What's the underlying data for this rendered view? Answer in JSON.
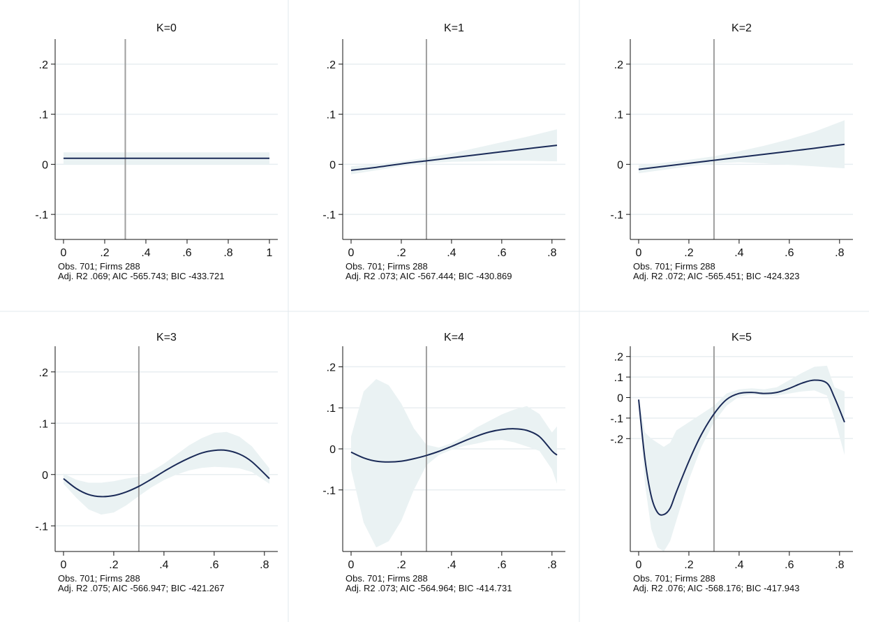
{
  "colors": {
    "line": "#1a2a57",
    "band": "#eaf2f3",
    "vline": "#9e9e9e",
    "grid": "#e8eef1",
    "axis": "#111111",
    "panel_border": "#e2e8ec"
  },
  "chart_data": [
    {
      "type": "line",
      "title": "K=0",
      "xlim": [
        0,
        1
      ],
      "ylim": [
        -0.15,
        0.25
      ],
      "xticks": [
        0,
        0.2,
        0.4,
        0.6,
        0.8,
        1
      ],
      "xticklabels": [
        "0",
        ".2",
        ".4",
        ".6",
        ".8",
        "1"
      ],
      "yticks": [
        0.2,
        0.1,
        0,
        -0.1
      ],
      "yticklabels": [
        ".2",
        ".1",
        "0",
        "-.1"
      ],
      "vline_x": 0.3,
      "x": [
        0,
        0.1,
        0.2,
        0.3,
        0.4,
        0.5,
        0.6,
        0.7,
        0.8,
        0.9,
        1
      ],
      "y": [
        0.012,
        0.012,
        0.012,
        0.012,
        0.012,
        0.012,
        0.012,
        0.012,
        0.012,
        0.012,
        0.012
      ],
      "lower": [
        0.0,
        0.0,
        0.0,
        0.0,
        0.0,
        0.0,
        0.0,
        0.0,
        0.0,
        0.0,
        0.0
      ],
      "upper": [
        0.024,
        0.024,
        0.024,
        0.024,
        0.024,
        0.024,
        0.024,
        0.024,
        0.024,
        0.024,
        0.024
      ],
      "note_line1": "Obs. 701; Firms 288",
      "note_line2": "Adj. R2 .069; AIC -565.743; BIC -433.721"
    },
    {
      "type": "line",
      "title": "K=1",
      "xlim": [
        0,
        0.82
      ],
      "ylim": [
        -0.15,
        0.25
      ],
      "xticks": [
        0,
        0.2,
        0.4,
        0.6,
        0.8
      ],
      "xticklabels": [
        "0",
        ".2",
        ".4",
        ".6",
        ".8"
      ],
      "yticks": [
        0.2,
        0.1,
        0,
        -0.1
      ],
      "yticklabels": [
        ".2",
        ".1",
        "0",
        "-.1"
      ],
      "vline_x": 0.3,
      "x": [
        0,
        0.1,
        0.2,
        0.3,
        0.4,
        0.5,
        0.6,
        0.7,
        0.82
      ],
      "y": [
        -0.012,
        -0.006,
        0.001,
        0.007,
        0.013,
        0.019,
        0.025,
        0.031,
        0.038
      ],
      "lower": [
        -0.02,
        -0.012,
        -0.004,
        0.002,
        0.005,
        0.006,
        0.007,
        0.007,
        0.006
      ],
      "upper": [
        -0.004,
        0.0,
        0.006,
        0.013,
        0.022,
        0.033,
        0.044,
        0.055,
        0.07
      ],
      "note_line1": "Obs. 701; Firms 288",
      "note_line2": "Adj. R2 .073; AIC -567.444; BIC -430.869"
    },
    {
      "type": "line",
      "title": "K=2",
      "xlim": [
        0,
        0.82
      ],
      "ylim": [
        -0.15,
        0.25
      ],
      "xticks": [
        0,
        0.2,
        0.4,
        0.6,
        0.8
      ],
      "xticklabels": [
        "0",
        ".2",
        ".4",
        ".6",
        ".8"
      ],
      "yticks": [
        0.2,
        0.1,
        0,
        -0.1
      ],
      "yticklabels": [
        ".2",
        ".1",
        "0",
        "-.1"
      ],
      "vline_x": 0.3,
      "x": [
        0,
        0.1,
        0.2,
        0.3,
        0.4,
        0.5,
        0.6,
        0.7,
        0.82
      ],
      "y": [
        -0.01,
        -0.004,
        0.002,
        0.008,
        0.014,
        0.02,
        0.026,
        0.032,
        0.04
      ],
      "lower": [
        -0.018,
        -0.011,
        -0.004,
        0.002,
        0.004,
        0.002,
        -0.001,
        -0.004,
        -0.008
      ],
      "upper": [
        -0.002,
        0.003,
        0.009,
        0.016,
        0.026,
        0.037,
        0.05,
        0.065,
        0.088
      ],
      "note_line1": "Obs. 701; Firms 288",
      "note_line2": "Adj. R2 .072; AIC -565.451; BIC -424.323"
    },
    {
      "type": "line",
      "title": "K=3",
      "xlim": [
        0,
        0.82
      ],
      "ylim": [
        -0.15,
        0.25
      ],
      "xticks": [
        0,
        0.2,
        0.4,
        0.6,
        0.8
      ],
      "xticklabels": [
        "0",
        ".2",
        ".4",
        ".6",
        ".8"
      ],
      "yticks": [
        0.2,
        0.1,
        0,
        -0.1
      ],
      "yticklabels": [
        ".2",
        ".1",
        "0",
        "-.1"
      ],
      "vline_x": 0.3,
      "x": [
        0,
        0.05,
        0.1,
        0.15,
        0.2,
        0.25,
        0.3,
        0.35,
        0.4,
        0.45,
        0.5,
        0.55,
        0.6,
        0.65,
        0.7,
        0.75,
        0.82
      ],
      "y": [
        -0.008,
        -0.027,
        -0.039,
        -0.043,
        -0.041,
        -0.034,
        -0.023,
        -0.009,
        0.006,
        0.02,
        0.032,
        0.042,
        0.047,
        0.047,
        0.04,
        0.025,
        -0.008
      ],
      "lower": [
        -0.018,
        -0.045,
        -0.068,
        -0.078,
        -0.074,
        -0.06,
        -0.042,
        -0.025,
        -0.011,
        0.0,
        0.008,
        0.013,
        0.015,
        0.014,
        0.012,
        0.005,
        -0.018
      ],
      "upper": [
        0.002,
        -0.01,
        -0.016,
        -0.016,
        -0.013,
        -0.008,
        -0.004,
        0.006,
        0.021,
        0.039,
        0.057,
        0.071,
        0.081,
        0.083,
        0.074,
        0.055,
        0.012
      ],
      "note_line1": "Obs. 701; Firms 288",
      "note_line2": "Adj. R2 .075; AIC -566.947; BIC -421.267"
    },
    {
      "type": "line",
      "title": "K=4",
      "xlim": [
        0,
        0.82
      ],
      "ylim": [
        -0.25,
        0.25
      ],
      "xticks": [
        0,
        0.2,
        0.4,
        0.6,
        0.8
      ],
      "xticklabels": [
        "0",
        ".2",
        ".4",
        ".6",
        ".8"
      ],
      "yticks": [
        0.2,
        0.1,
        0,
        -0.1
      ],
      "yticklabels": [
        ".2",
        ".1",
        "0",
        "-.1"
      ],
      "vline_x": 0.3,
      "x": [
        0,
        0.05,
        0.1,
        0.15,
        0.2,
        0.25,
        0.3,
        0.35,
        0.4,
        0.45,
        0.5,
        0.55,
        0.6,
        0.65,
        0.7,
        0.75,
        0.8,
        0.82
      ],
      "y": [
        -0.008,
        -0.022,
        -0.03,
        -0.032,
        -0.03,
        -0.024,
        -0.016,
        -0.006,
        0.006,
        0.019,
        0.031,
        0.041,
        0.047,
        0.049,
        0.045,
        0.03,
        -0.005,
        -0.015
      ],
      "lower": [
        -0.05,
        -0.18,
        -0.24,
        -0.225,
        -0.175,
        -0.1,
        -0.04,
        -0.015,
        -0.002,
        0.007,
        0.013,
        0.02,
        0.022,
        0.016,
        0.006,
        -0.005,
        -0.05,
        -0.085
      ],
      "upper": [
        0.03,
        0.14,
        0.17,
        0.155,
        0.11,
        0.05,
        0.01,
        0.003,
        0.014,
        0.031,
        0.052,
        0.068,
        0.084,
        0.096,
        0.104,
        0.085,
        0.04,
        0.055
      ],
      "note_line1": "Obs. 701; Firms 288",
      "note_line2": "Adj. R2 .073; AIC -564.964; BIC -414.731"
    },
    {
      "type": "line",
      "title": "K=5",
      "xlim": [
        0,
        0.82
      ],
      "ylim": [
        -0.75,
        0.25
      ],
      "xticks": [
        0,
        0.2,
        0.4,
        0.6,
        0.8
      ],
      "xticklabels": [
        "0",
        ".2",
        ".4",
        ".6",
        ".8"
      ],
      "yticks": [
        0.2,
        0.1,
        0,
        -0.1,
        -0.2
      ],
      "yticklabels": [
        ".2",
        ".1",
        "0",
        "-.1",
        "-.2"
      ],
      "vline_x": 0.3,
      "x": [
        0,
        0.025,
        0.05,
        0.075,
        0.1,
        0.125,
        0.15,
        0.2,
        0.25,
        0.3,
        0.35,
        0.4,
        0.45,
        0.5,
        0.55,
        0.6,
        0.65,
        0.7,
        0.75,
        0.78,
        0.82
      ],
      "y": [
        -0.01,
        -0.3,
        -0.48,
        -0.56,
        -0.57,
        -0.54,
        -0.46,
        -0.31,
        -0.18,
        -0.08,
        -0.01,
        0.02,
        0.025,
        0.02,
        0.025,
        0.045,
        0.07,
        0.085,
        0.07,
        0.0,
        -0.12
      ],
      "lower": [
        -0.03,
        -0.42,
        -0.64,
        -0.73,
        -0.75,
        -0.7,
        -0.6,
        -0.4,
        -0.24,
        -0.12,
        -0.04,
        0.005,
        0.015,
        0.01,
        0.01,
        0.02,
        0.03,
        0.035,
        0.01,
        -0.1,
        -0.28
      ],
      "upper": [
        0.0,
        -0.17,
        -0.2,
        -0.22,
        -0.24,
        -0.22,
        -0.16,
        -0.12,
        -0.08,
        -0.04,
        0.02,
        0.04,
        0.045,
        0.04,
        0.05,
        0.085,
        0.12,
        0.15,
        0.155,
        0.05,
        0.03
      ],
      "note_line1": "Obs. 701; Firms 288",
      "note_line2": "Adj. R2 .076; AIC -568.176; BIC -417.943"
    }
  ]
}
